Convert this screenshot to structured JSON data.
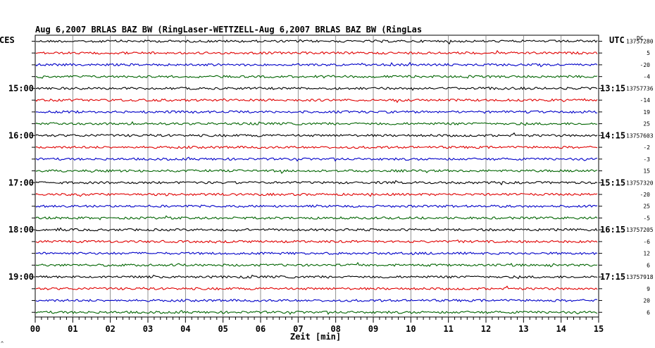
{
  "chart_data": {
    "type": "line",
    "title": "Aug 6,2007   BRLAS BAZ BW (RingLaser-WETTZELL-Aug 6,2007   BRLAS BAZ BW (RingLas",
    "xlabel": "Zeit [min]",
    "x_ticks": [
      "00",
      "01",
      "02",
      "03",
      "04",
      "05",
      "06",
      "07",
      "08",
      "09",
      "10",
      "11",
      "12",
      "13",
      "14",
      "15"
    ],
    "xlim": [
      0,
      15
    ],
    "left_axis_label": "CES",
    "right_axis_label": "UTC",
    "right_units_label": "DC",
    "series_colors": [
      "#000000",
      "#e00000",
      "#0000c8",
      "#006400"
    ],
    "hour_blocks": [
      {
        "ces": "",
        "utc": "",
        "dc": [
          "13757280",
          "5",
          "-20",
          "-4"
        ]
      },
      {
        "ces": "15:00",
        "utc": "13:15",
        "dc": [
          "13757736",
          "-14",
          "19",
          "25"
        ]
      },
      {
        "ces": "16:00",
        "utc": "14:15",
        "dc": [
          "13757603",
          "-2",
          "-3",
          "15"
        ]
      },
      {
        "ces": "17:00",
        "utc": "15:15",
        "dc": [
          "13757320",
          "-20",
          "25",
          "-5"
        ]
      },
      {
        "ces": "18:00",
        "utc": "16:15",
        "dc": [
          "13757205",
          "-6",
          "12",
          "6"
        ]
      },
      {
        "ces": "19:00",
        "utc": "17:15",
        "dc": [
          "13757918",
          "9",
          "20",
          "6"
        ]
      }
    ],
    "corner_mark": "^"
  }
}
